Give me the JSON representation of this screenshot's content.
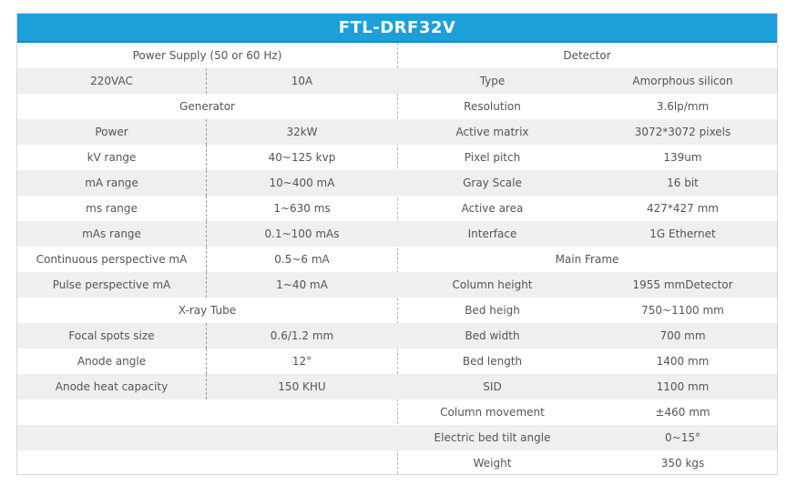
{
  "title": "FTL-DRF32V",
  "left_column": [
    {
      "type": "header",
      "label": "Power Supply (50 or 60 Hz)"
    },
    {
      "type": "pair",
      "name": "220VAC",
      "value": "10A"
    },
    {
      "type": "header",
      "label": "Generator"
    },
    {
      "type": "pair",
      "name": "Power",
      "value": "32kW"
    },
    {
      "type": "pair",
      "name": "kV range",
      "value": "40~125 kvp"
    },
    {
      "type": "pair",
      "name": "mA range",
      "value": "10~400 mA"
    },
    {
      "type": "pair",
      "name": "ms range",
      "value": "1~630 ms"
    },
    {
      "type": "pair",
      "name": "mAs range",
      "value": "0.1~100 mAs"
    },
    {
      "type": "pair",
      "name": "Continuous perspective mA",
      "value": "0.5~6 mA"
    },
    {
      "type": "pair",
      "name": "Pulse perspective mA",
      "value": "1~40 mA"
    },
    {
      "type": "header",
      "label": "X-ray Tube"
    },
    {
      "type": "pair",
      "name": "Focal spots size",
      "value": "0.6/1.2 mm"
    },
    {
      "type": "pair",
      "name": "Anode angle",
      "value": "12°"
    },
    {
      "type": "pair",
      "name": "Anode heat capacity",
      "value": "150 KHU"
    },
    {
      "type": "empty"
    },
    {
      "type": "empty"
    },
    {
      "type": "empty"
    }
  ],
  "right_column": [
    {
      "type": "header",
      "label": "Detector"
    },
    {
      "type": "pair",
      "name": "Type",
      "value": "Amorphous silicon"
    },
    {
      "type": "pair",
      "name": "Resolution",
      "value": "3.6lp/mm"
    },
    {
      "type": "pair",
      "name": "Active matrix",
      "value": "3072*3072 pixels"
    },
    {
      "type": "pair",
      "name": "Pixel pitch",
      "value": "139um"
    },
    {
      "type": "pair",
      "name": "Gray Scale",
      "value": "16 bit"
    },
    {
      "type": "pair",
      "name": "Active area",
      "value": "427*427 mm"
    },
    {
      "type": "pair",
      "name": "Interface",
      "value": "1G Ethernet"
    },
    {
      "type": "header",
      "label": "Main Frame"
    },
    {
      "type": "pair",
      "name": "Column height",
      "value": "1955 mmDetector"
    },
    {
      "type": "pair",
      "name": "Bed heigh",
      "value": "750~1100 mm"
    },
    {
      "type": "pair",
      "name": "Bed width",
      "value": "700 mm"
    },
    {
      "type": "pair",
      "name": "Bed length",
      "value": "1400 mm"
    },
    {
      "type": "pair",
      "name": "SID",
      "value": "1100 mm"
    },
    {
      "type": "pair",
      "name": "Column movement",
      "value": "±460 mm"
    },
    {
      "type": "pair",
      "name": "Electric bed tilt angle",
      "value": "0~15°"
    },
    {
      "type": "pair",
      "name": "Weight",
      "value": "350 kgs"
    }
  ]
}
